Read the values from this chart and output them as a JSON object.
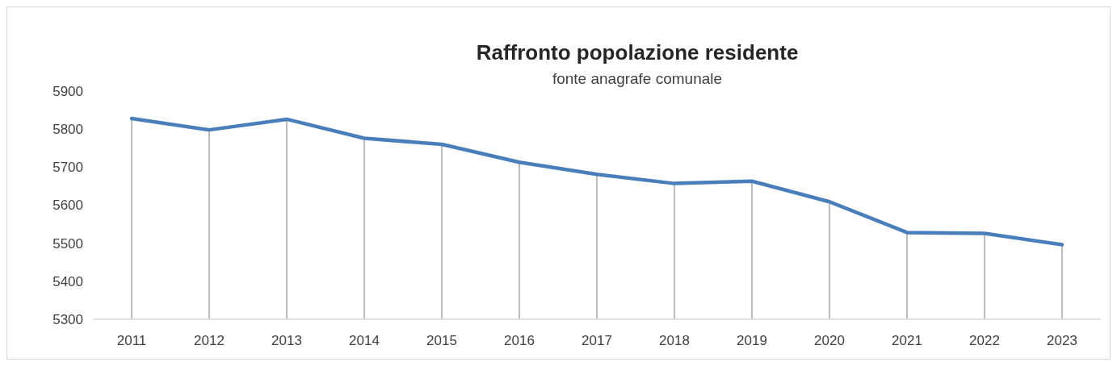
{
  "chart_data": {
    "type": "line",
    "title": "Raffronto popolazione residente",
    "subtitle": "fonte anagrafe comunale",
    "categories": [
      "2011",
      "2012",
      "2013",
      "2014",
      "2015",
      "2016",
      "2017",
      "2018",
      "2019",
      "2020",
      "2021",
      "2022",
      "2023"
    ],
    "series": [
      {
        "type": "bar",
        "color": "#a6a6a6",
        "values": [
          5828,
          5798,
          5826,
          5776,
          5760,
          5713,
          5681,
          5657,
          5663,
          5609,
          5528,
          5526,
          5496
        ]
      },
      {
        "color": "#4a7ebb",
        "values": [
          5828,
          5798,
          5826,
          5776,
          5760,
          5713,
          5681,
          5657,
          5663,
          5609,
          5528,
          5526,
          5496
        ]
      }
    ],
    "ylim": [
      5300,
      5900
    ],
    "yticks": [
      5300,
      5400,
      5500,
      5600,
      5700,
      5800,
      5900
    ],
    "grid": false,
    "marker": "none",
    "line_style": "solid"
  }
}
